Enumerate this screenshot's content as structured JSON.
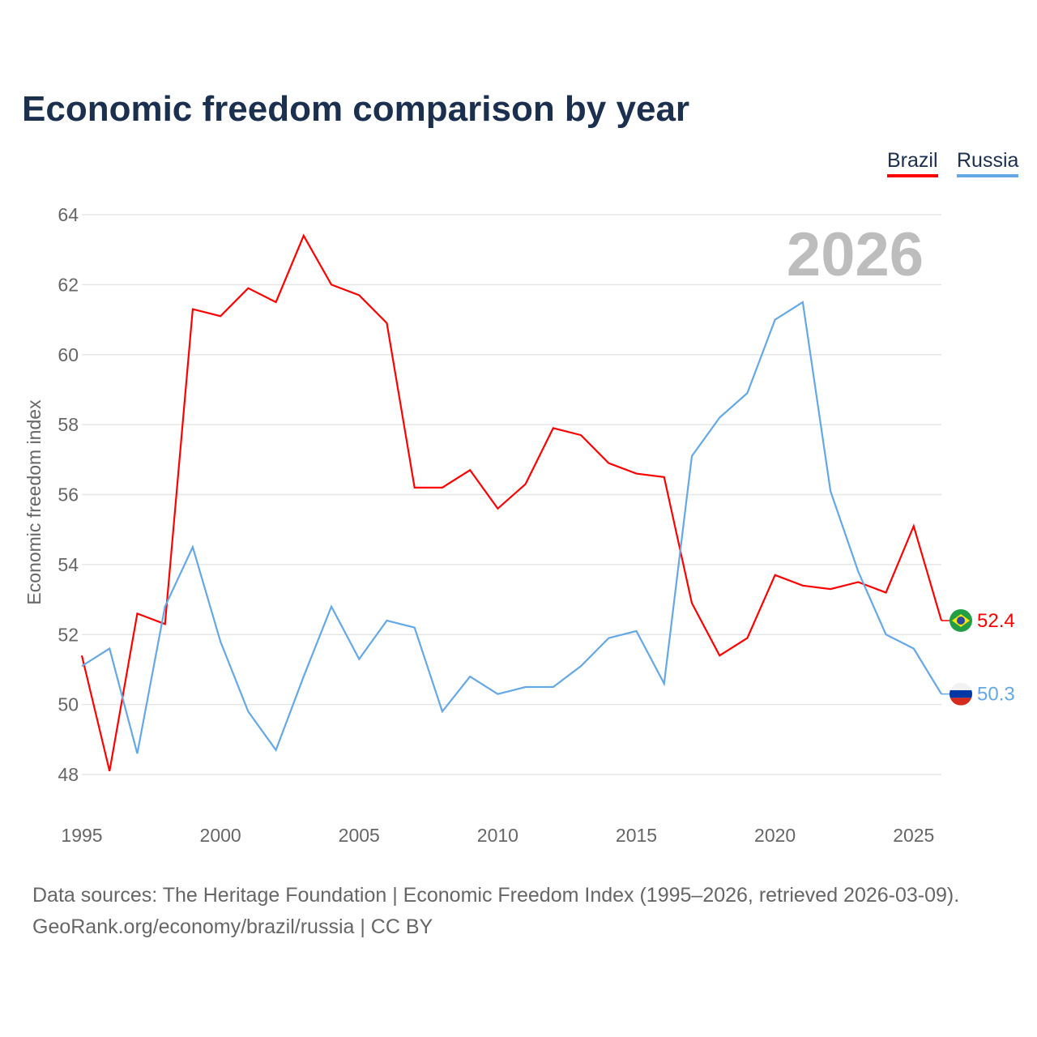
{
  "title": "Economic freedom comparison by year",
  "year_watermark": "2026",
  "source_line1": "Data sources: The Heritage Foundation | Economic Freedom Index (1995–2026, retrieved 2026-03-09).",
  "source_line2": "GeoRank.org/economy/brazil/russia | CC BY",
  "chart_data": {
    "type": "line",
    "title": "Economic freedom comparison by year",
    "xlabel": "",
    "ylabel": "Economic freedom index",
    "xlim": [
      1995,
      2026
    ],
    "ylim": [
      47,
      64
    ],
    "x_ticks": [
      "1995",
      "2000",
      "2005",
      "2010",
      "2015",
      "2020",
      "2025"
    ],
    "y_ticks": [
      "48",
      "50",
      "52",
      "54",
      "56",
      "58",
      "60",
      "62",
      "64"
    ],
    "grid": true,
    "legend_position": "top-right",
    "x": [
      1995,
      1996,
      1997,
      1998,
      1999,
      2000,
      2001,
      2002,
      2003,
      2004,
      2005,
      2006,
      2007,
      2008,
      2009,
      2010,
      2011,
      2012,
      2013,
      2014,
      2015,
      2016,
      2017,
      2018,
      2019,
      2020,
      2021,
      2022,
      2023,
      2024,
      2025,
      2026
    ],
    "series": [
      {
        "name": "Brazil",
        "color": "#ff0000",
        "end_label": "52.4",
        "values": [
          51.4,
          48.1,
          52.6,
          52.3,
          61.3,
          61.1,
          61.9,
          61.5,
          63.4,
          62.0,
          61.7,
          60.9,
          56.2,
          56.2,
          56.7,
          55.6,
          56.3,
          57.9,
          57.7,
          56.9,
          56.6,
          56.5,
          52.9,
          51.4,
          51.9,
          53.7,
          53.4,
          53.3,
          53.5,
          53.2,
          55.1,
          52.4
        ]
      },
      {
        "name": "Russia",
        "color": "#64a8e8",
        "end_label": "50.3",
        "values": [
          51.1,
          51.6,
          48.6,
          52.8,
          54.5,
          51.8,
          49.8,
          48.7,
          50.8,
          52.8,
          51.3,
          52.4,
          52.2,
          49.8,
          50.8,
          50.3,
          50.5,
          50.5,
          51.1,
          51.9,
          52.1,
          50.6,
          57.1,
          58.2,
          58.9,
          61.0,
          61.5,
          56.1,
          53.8,
          52.0,
          51.6,
          50.3
        ]
      }
    ]
  }
}
